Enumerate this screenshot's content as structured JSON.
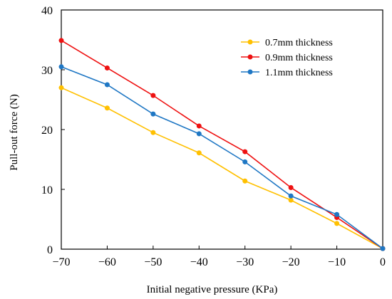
{
  "chart_data": {
    "type": "line",
    "title": "",
    "xlabel": "Initial negative pressure (KPa)",
    "ylabel": "Pull-out force (N)",
    "x": [
      -70,
      -60,
      -50,
      -40,
      -30,
      -20,
      -10,
      0
    ],
    "xlim": [
      -70,
      0
    ],
    "ylim": [
      0,
      40
    ],
    "xticks": [
      -70,
      -60,
      -50,
      -40,
      -30,
      -20,
      -10,
      0
    ],
    "xtick_labels": [
      "−70",
      "−60",
      "−50",
      "−40",
      "−30",
      "−20",
      "−10",
      "0"
    ],
    "yticks": [
      0,
      10,
      20,
      30,
      40
    ],
    "ytick_labels": [
      "0",
      "10",
      "20",
      "30",
      "40"
    ],
    "grid": false,
    "legend_position": "top-right",
    "series": [
      {
        "name": "0.7mm thickness",
        "color": "#FFC000",
        "values": [
          27.0,
          23.6,
          19.5,
          16.1,
          11.4,
          8.2,
          4.3,
          0.1
        ]
      },
      {
        "name": "0.9mm thickness",
        "color": "#EE1111",
        "values": [
          34.9,
          30.3,
          25.7,
          20.6,
          16.3,
          10.3,
          5.3,
          0.1
        ]
      },
      {
        "name": "1.1mm thickness",
        "color": "#1F77C4",
        "values": [
          30.5,
          27.5,
          22.6,
          19.3,
          14.6,
          8.9,
          5.8,
          0.1
        ]
      }
    ]
  }
}
